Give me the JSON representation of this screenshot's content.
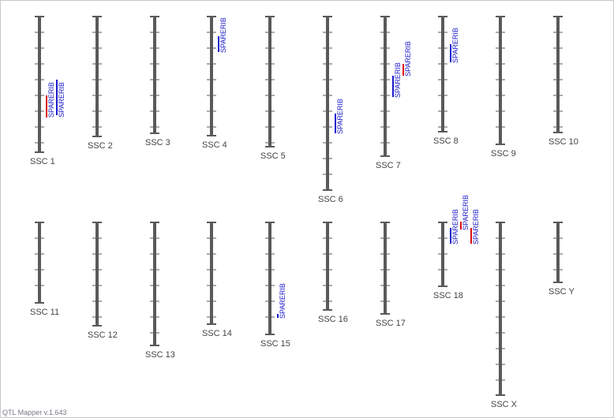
{
  "chromosomes": [
    "SSC 1",
    "SSC 2",
    "SSC 3",
    "SSC 4",
    "SSC 5",
    "SSC 6",
    "SSC 7",
    "SSC 8",
    "SSC 9",
    "SSC 10",
    "SSC 11",
    "SSC 12",
    "SSC 13",
    "SSC 14",
    "SSC 15",
    "SSC 16",
    "SSC 17",
    "SSC 18",
    "SSC X",
    "SSC Y"
  ],
  "qtls": [
    {
      "trait": "SPARERIB"
    },
    {
      "trait": "SPARERIB"
    },
    {
      "trait": "SPARERIB"
    },
    {
      "trait": "SPARERIB"
    },
    {
      "trait": "SPARERIB"
    },
    {
      "trait": "SPARERIB"
    },
    {
      "trait": "SPARERIB"
    },
    {
      "trait": "SPARERIB"
    },
    {
      "trait": "SPARERIB"
    },
    {
      "trait": "SPARERIB"
    },
    {
      "trait": "SPARERIB"
    }
  ],
  "footer": "QTL Mapper v.1.643"
}
